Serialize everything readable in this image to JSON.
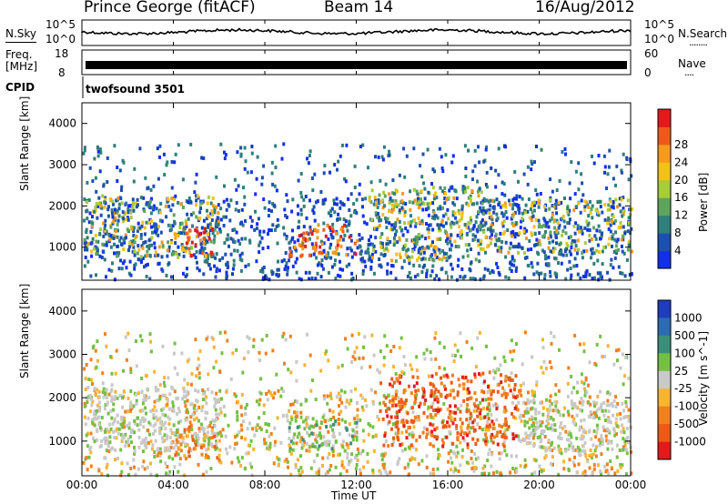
{
  "header": {
    "station": "Prince George (fitACF)",
    "beam": "Beam 14",
    "date": "16/Aug/2012"
  },
  "noise_panel": {
    "left_label": "N.Sky",
    "left_ticks": [
      "10^5",
      "10^0"
    ],
    "right_ticks": [
      "10^5",
      "10^0"
    ],
    "right_label": "N.Search",
    "right_dots": "........"
  },
  "freq_panel": {
    "left_label_1": "Freq.",
    "left_label_2": "[MHz]",
    "left_ticks": [
      "18",
      "8"
    ],
    "right_ticks": [
      "60",
      "0"
    ],
    "right_label": "Nave",
    "right_dots": "...."
  },
  "cpid": {
    "label": "CPID",
    "value": "twofsound 3501"
  },
  "x_axis": {
    "ticks": [
      "00:00",
      "04:00",
      "08:00",
      "12:00",
      "16:00",
      "20:00",
      "00:00"
    ],
    "label": "Time UT"
  },
  "chart_data": [
    {
      "type": "heatmap",
      "panel": "power",
      "ylabel": "Slant Range [km]",
      "yticks": [
        "1000",
        "2000",
        "3000",
        "4000"
      ],
      "ylim": [
        200,
        4500
      ],
      "xlim_hours": [
        0,
        24
      ],
      "colorbar": {
        "label": "Power [dB]",
        "ticks": [
          "4",
          "8",
          "12",
          "16",
          "20",
          "24",
          "28"
        ],
        "colors": [
          "#1230e8",
          "#1d4fb0",
          "#2f7f7a",
          "#5fa45c",
          "#a6cc3a",
          "#f2c21a",
          "#f39a1f",
          "#ee5a1c",
          "#e31a1c"
        ]
      },
      "bands": [
        {
          "t0": 0,
          "t1": 6,
          "r0": 800,
          "r1": 2300,
          "level": "medium"
        },
        {
          "t0": 4.5,
          "t1": 5.7,
          "r0": 800,
          "r1": 1500,
          "level": "high"
        },
        {
          "t0": 9,
          "t1": 12,
          "r0": 800,
          "r1": 1600,
          "level": "high"
        },
        {
          "t0": 12.5,
          "t1": 17.5,
          "r0": 700,
          "r1": 2500,
          "level": "medium"
        },
        {
          "t0": 17.5,
          "t1": 24,
          "r0": 900,
          "r1": 2200,
          "level": "medium"
        }
      ]
    },
    {
      "type": "heatmap",
      "panel": "velocity",
      "ylabel": "Slant Range [km]",
      "yticks": [
        "1000",
        "2000",
        "3000",
        "4000"
      ],
      "ylim": [
        200,
        4500
      ],
      "xlim_hours": [
        0,
        24
      ],
      "colorbar": {
        "label": "Velocity [m s^-1]",
        "ticks": [
          "1000",
          "500",
          "100",
          "25",
          "-25",
          "-100",
          "-500",
          "-1000"
        ],
        "colors": [
          "#1f3dbd",
          "#2c6cb0",
          "#3b8f7a",
          "#74c045",
          "#c9c9c9",
          "#f8b433",
          "#f1801e",
          "#ec5a18",
          "#e31a1c"
        ]
      },
      "bands": [
        {
          "t0": 0,
          "t1": 6,
          "r0": 800,
          "r1": 2300,
          "level": "ground"
        },
        {
          "t0": 4,
          "t1": 6,
          "r0": 600,
          "r1": 1400,
          "level": "negative"
        },
        {
          "t0": 9,
          "t1": 12,
          "r0": 800,
          "r1": 1600,
          "level": "positive"
        },
        {
          "t0": 13,
          "t1": 19,
          "r0": 900,
          "r1": 2600,
          "level": "strong-negative"
        },
        {
          "t0": 19,
          "t1": 24,
          "r0": 800,
          "r1": 2000,
          "level": "ground"
        }
      ]
    }
  ]
}
